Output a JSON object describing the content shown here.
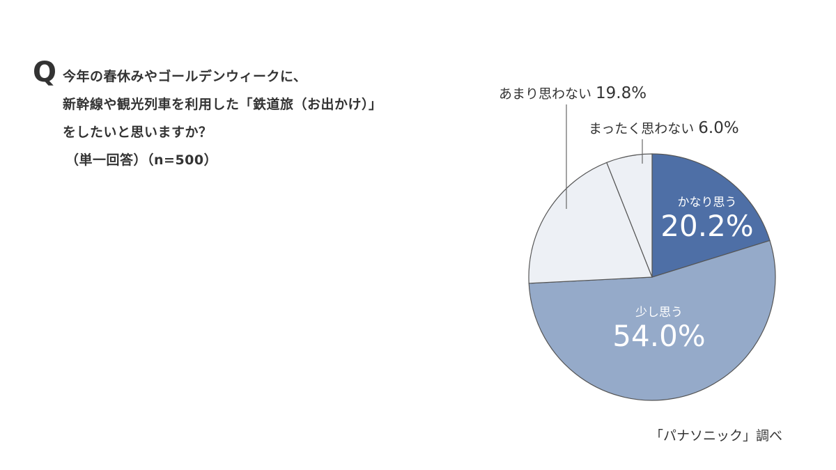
{
  "question": {
    "mark": "Q",
    "lines": [
      "今年の春休みやゴールデンウィークに、",
      "新幹線や観光列車を利用した「鉄道旅（お出かけ）」",
      "をしたいと思いますか？",
      "（単一回答）（n=500）"
    ]
  },
  "source": "「パナソニック」調べ",
  "colors": {
    "kanari": "#4e6fa6",
    "sukoshi": "#95aac9",
    "amari": "#edf0f5",
    "mattaku": "#edf0f5",
    "outline": "#555555",
    "text": "#333333"
  },
  "slices": [
    {
      "label": "かなり思う",
      "pct": "20.2%"
    },
    {
      "label": "少し思う",
      "pct": "54.0%"
    },
    {
      "label": "あまり思わない",
      "pct": "19.8%"
    },
    {
      "label": "まったく思わない",
      "pct": "6.0%"
    }
  ],
  "chart_data": {
    "type": "pie",
    "title": "今年の春休みやゴールデンウィークに、新幹線や観光列車を利用した「鉄道旅（お出かけ）」をしたいと思いますか？（単一回答）（n=500）",
    "categories": [
      "かなり思う",
      "少し思う",
      "あまり思わない",
      "まったく思わない"
    ],
    "values": [
      20.2,
      54.0,
      19.8,
      6.0
    ],
    "unit": "%",
    "n": 500,
    "start_angle": "12 o'clock, clockwise",
    "legend": "none (direct labels)",
    "source": "「パナソニック」調べ"
  }
}
